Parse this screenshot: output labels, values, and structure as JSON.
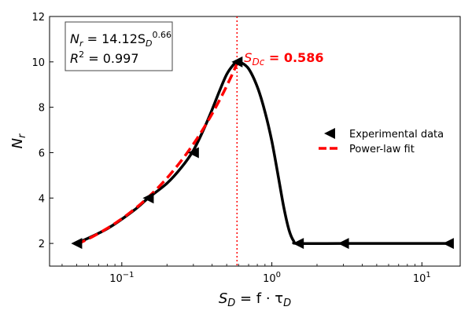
{
  "chart_data": {
    "type": "line",
    "xscale": "log",
    "xlim": [
      0.033,
      18
    ],
    "ylim": [
      1,
      12
    ],
    "yticks": [
      2,
      4,
      6,
      8,
      10,
      12
    ],
    "xticks": [
      {
        "value": 0.1,
        "base": "10",
        "exp": "−1"
      },
      {
        "value": 1,
        "base": "10",
        "exp": "0"
      },
      {
        "value": 10,
        "base": "10",
        "exp": "1"
      }
    ],
    "xlabel": {
      "base": "S",
      "sub": "D",
      "rest": " = f · τ",
      "sub2": "D"
    },
    "ylabel": {
      "base": "N",
      "sub": "r"
    },
    "series": [
      {
        "name": "Experimental data",
        "kind": "line+markers",
        "color": "#000000",
        "marker": "left-triangle",
        "markers": [
          [
            0.05,
            2
          ],
          [
            0.15,
            4
          ],
          [
            0.3,
            6
          ],
          [
            0.586,
            10
          ],
          [
            1.5,
            2
          ],
          [
            3,
            2
          ],
          [
            15,
            2
          ]
        ],
        "curve": [
          [
            0.05,
            2
          ],
          [
            0.08,
            2.65
          ],
          [
            0.12,
            3.45
          ],
          [
            0.15,
            4
          ],
          [
            0.2,
            4.65
          ],
          [
            0.25,
            5.35
          ],
          [
            0.3,
            6.1
          ],
          [
            0.35,
            7.0
          ],
          [
            0.4,
            7.9
          ],
          [
            0.45,
            8.75
          ],
          [
            0.5,
            9.45
          ],
          [
            0.55,
            9.85
          ],
          [
            0.586,
            10.0
          ],
          [
            0.62,
            9.98
          ],
          [
            0.7,
            9.7
          ],
          [
            0.8,
            8.9
          ],
          [
            0.9,
            7.8
          ],
          [
            1.0,
            6.5
          ],
          [
            1.1,
            5.0
          ],
          [
            1.2,
            3.6
          ],
          [
            1.3,
            2.6
          ],
          [
            1.4,
            2.1
          ],
          [
            1.5,
            2
          ],
          [
            3,
            2
          ],
          [
            15,
            2
          ]
        ]
      },
      {
        "name": "Power-law fit",
        "kind": "dashed",
        "color": "#ff0000",
        "coef": 14.12,
        "exponent": 0.66,
        "range": [
          0.05,
          0.586
        ]
      }
    ],
    "critical": {
      "value": 0.586,
      "label_base": "S",
      "label_sub": "Dc",
      "label_value": " = 0.586",
      "color": "#ff0000"
    },
    "equation": {
      "line1_lhs": "N",
      "line1_lhs_sub": "r",
      "line1_eq": " = 14.12S",
      "line1_sub": "D",
      "line1_sup": "0.66",
      "line2_lhs": "R",
      "line2_sup": "2",
      "line2_eq": " = 0.997"
    },
    "legend": {
      "position": "center-right",
      "items": [
        {
          "label": "Experimental data",
          "style": "triangle",
          "color": "#000000"
        },
        {
          "label": "Power-law fit",
          "style": "dashed",
          "color": "#ff0000"
        }
      ]
    }
  }
}
